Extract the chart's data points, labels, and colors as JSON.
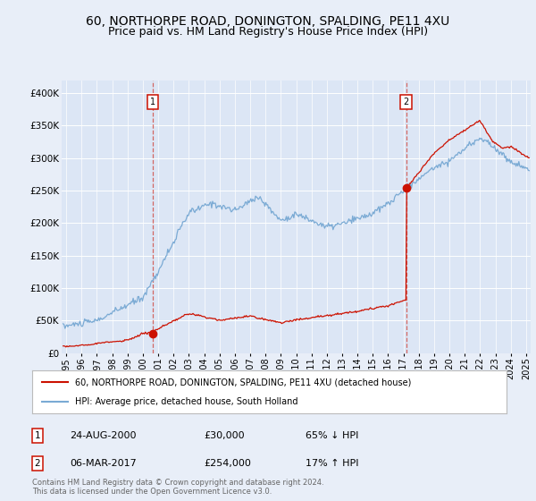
{
  "title": "60, NORTHORPE ROAD, DONINGTON, SPALDING, PE11 4XU",
  "subtitle": "Price paid vs. HM Land Registry's House Price Index (HPI)",
  "title_fontsize": 10,
  "subtitle_fontsize": 9,
  "background_color": "#e8eef8",
  "plot_bg_color": "#dce6f5",
  "ylabel_ticks": [
    "£0",
    "£50K",
    "£100K",
    "£150K",
    "£200K",
    "£250K",
    "£300K",
    "£350K",
    "£400K"
  ],
  "ytick_values": [
    0,
    50000,
    100000,
    150000,
    200000,
    250000,
    300000,
    350000,
    400000
  ],
  "ylim": [
    0,
    420000
  ],
  "xlim_start": 1994.7,
  "xlim_end": 2025.3,
  "hpi_color": "#7aaad4",
  "price_color": "#cc1100",
  "sale1_year": 2000.646,
  "sale1_price": 30000,
  "sale1_label": "1",
  "sale1_date": "24-AUG-2000",
  "sale1_hpi_str": "£30,000",
  "sale1_hpi_pct": "65% ↓ HPI",
  "sale2_year": 2017.173,
  "sale2_price": 254000,
  "sale2_label": "2",
  "sale2_date": "06-MAR-2017",
  "sale2_hpi_str": "£254,000",
  "sale2_hpi_pct": "17% ↑ HPI",
  "legend_line1": "60, NORTHORPE ROAD, DONINGTON, SPALDING, PE11 4XU (detached house)",
  "legend_line2": "HPI: Average price, detached house, South Holland",
  "footer1": "Contains HM Land Registry data © Crown copyright and database right 2024.",
  "footer2": "This data is licensed under the Open Government Licence v3.0.",
  "xtick_years": [
    1995,
    1996,
    1997,
    1998,
    1999,
    2000,
    2001,
    2002,
    2003,
    2004,
    2005,
    2006,
    2007,
    2008,
    2009,
    2010,
    2011,
    2012,
    2013,
    2014,
    2015,
    2016,
    2017,
    2018,
    2019,
    2020,
    2021,
    2022,
    2023,
    2024,
    2025
  ]
}
